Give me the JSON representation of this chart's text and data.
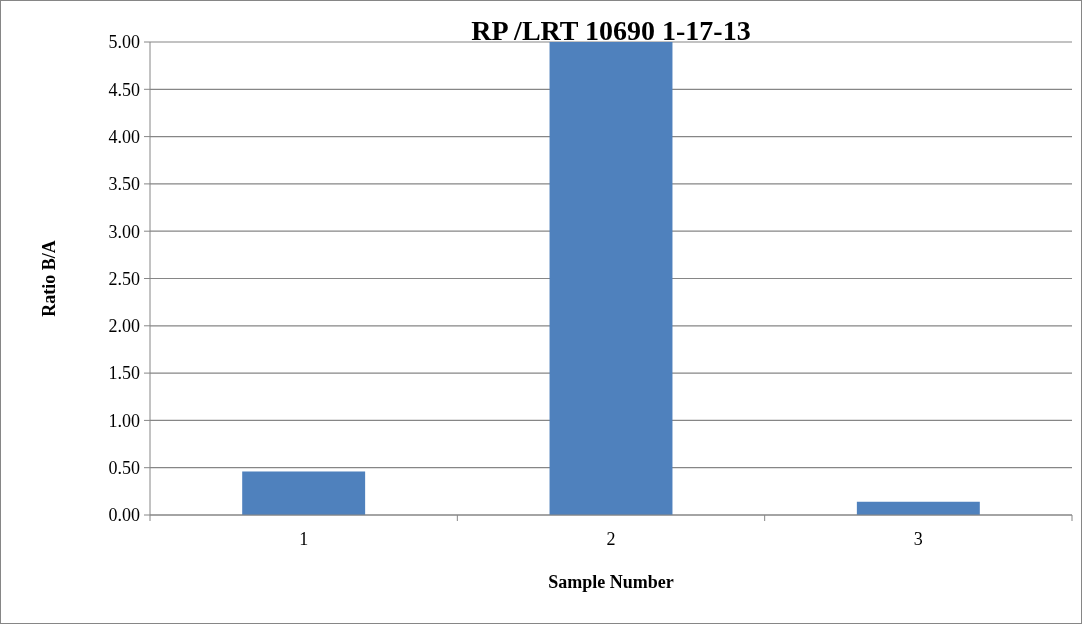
{
  "chart_data": {
    "type": "bar",
    "title": "RP /LRT 10690 1-17-13",
    "xlabel": "Sample Number",
    "ylabel": "Ratio B/A",
    "categories": [
      "1",
      "2",
      "3"
    ],
    "values": [
      0.46,
      5.0,
      0.14
    ],
    "color": "#4f81bd",
    "ylim": [
      0,
      5
    ],
    "yticks": [
      {
        "value": 0,
        "label": "0.00"
      },
      {
        "value": 0.5,
        "label": "0.50"
      },
      {
        "value": 1,
        "label": "1.00"
      },
      {
        "value": 1.5,
        "label": "1.50"
      },
      {
        "value": 2,
        "label": "2.00"
      },
      {
        "value": 2.5,
        "label": "2.50"
      },
      {
        "value": 3,
        "label": "3.00"
      },
      {
        "value": 3.5,
        "label": "3.50"
      },
      {
        "value": 4,
        "label": "4.00"
      },
      {
        "value": 4.5,
        "label": "4.50"
      },
      {
        "value": 5,
        "label": "5.00"
      }
    ],
    "grid": "y"
  }
}
